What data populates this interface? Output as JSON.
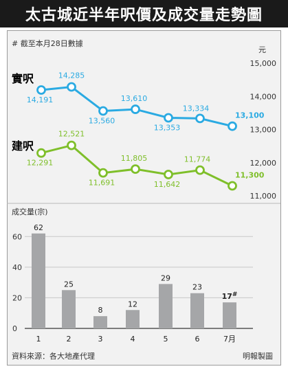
{
  "title": "太古城近半年呎價及成交量走勢圖",
  "note": "# 截至本月28日數據",
  "footer": {
    "source": "資料來源：各大地產代理",
    "credit": "明報製圖"
  },
  "colors": {
    "actual": "#2aaae2",
    "built": "#7fbf2a",
    "bar": "#a5a6a8"
  },
  "chart_data": [
    {
      "type": "line",
      "unit_label": "元",
      "ylim": [
        11000,
        15000
      ],
      "y_ticks": [
        "15,000",
        "14,000",
        "13,000",
        "12,000",
        "11,000"
      ],
      "series": [
        {
          "name": "實呎",
          "values": [
            14191,
            14285,
            13560,
            13610,
            13353,
            13334,
            13100
          ],
          "labels": [
            "14,191",
            "14,285",
            "13,560",
            "13,610",
            "13,353",
            "13,334",
            "13,100"
          ]
        },
        {
          "name": "建呎",
          "values": [
            12291,
            12521,
            11691,
            11805,
            11642,
            11774,
            11300
          ],
          "labels": [
            "12,291",
            "12,521",
            "11,691",
            "11,805",
            "11,642",
            "11,774",
            "11,300"
          ]
        }
      ]
    },
    {
      "type": "bar",
      "ylabel": "成交量(宗)",
      "categories": [
        "1",
        "2",
        "3",
        "4",
        "5",
        "6",
        "7月"
      ],
      "values": [
        62,
        25,
        8,
        12,
        29,
        23,
        17
      ],
      "labels": [
        "62",
        "25",
        "8",
        "12",
        "29",
        "23",
        "17"
      ],
      "last_mark": "#",
      "ylim": [
        0,
        70
      ],
      "y_ticks": [
        "60",
        "40",
        "20",
        "0"
      ]
    }
  ]
}
